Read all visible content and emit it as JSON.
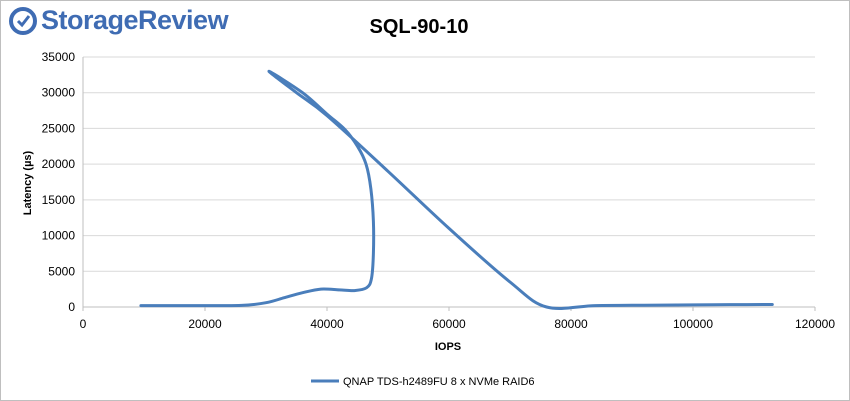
{
  "brand": {
    "name": "StorageReview",
    "color": "#3f6cb3"
  },
  "chart_data": {
    "type": "line",
    "title": "SQL-90-10",
    "xlabel": "IOPS",
    "ylabel": "Latency (µs)",
    "xlim": [
      0,
      120000
    ],
    "ylim": [
      0,
      35000
    ],
    "xticks": [
      0,
      20000,
      40000,
      60000,
      80000,
      100000,
      120000
    ],
    "yticks": [
      0,
      5000,
      10000,
      15000,
      20000,
      25000,
      30000,
      35000
    ],
    "grid": "horizontal",
    "legend_position": "bottom",
    "series": [
      {
        "name": "QNAP TDS-h2489FU 8 x NVMe RAID6",
        "color": "#4a7ebb",
        "x": [
          9500,
          20000,
          26000,
          30000,
          33000,
          36000,
          39000,
          42000,
          44500,
          46500,
          47300,
          47600,
          47600,
          47200,
          46400,
          45000,
          43000,
          40000,
          36000,
          30500,
          35000,
          40000,
          50000,
          60000,
          70000,
          76000,
          84000,
          92000,
          100000,
          106000,
          113000
        ],
        "y": [
          200,
          200,
          220,
          600,
          1300,
          2000,
          2500,
          2400,
          2300,
          2700,
          4000,
          7500,
          12000,
          16500,
          20000,
          22500,
          24800,
          27000,
          30000,
          33000,
          30000,
          26800,
          19000,
          11000,
          3500,
          0,
          200,
          250,
          300,
          330,
          350
        ]
      }
    ]
  }
}
